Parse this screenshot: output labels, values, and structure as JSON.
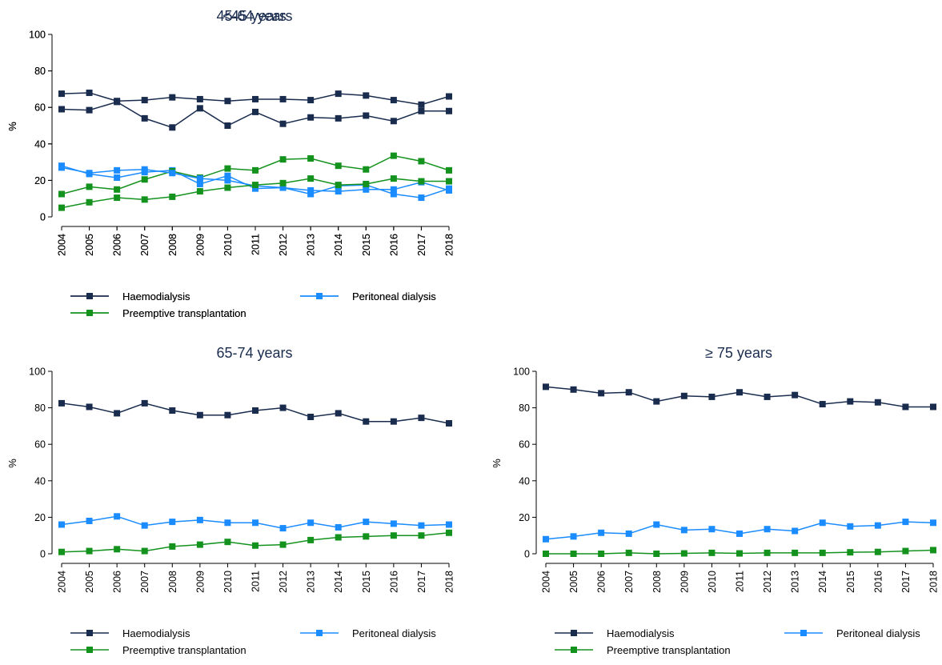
{
  "colors": {
    "Haemodialysis": "#1a2c4e",
    "Peritoneal dialysis": "#1a8cff",
    "Preemptive transplantation": "#14921e"
  },
  "chart_data": [
    {
      "type": "line",
      "title": "<45 years",
      "ylabel": "%",
      "ylim": [
        0,
        100
      ],
      "yticks": [
        0,
        20,
        40,
        60,
        80,
        100
      ],
      "x": [
        "2004",
        "2005",
        "2006",
        "2007",
        "2008",
        "2009",
        "2010",
        "2011",
        "2012",
        "2013",
        "2014",
        "2015",
        "2016",
        "2017",
        "2018"
      ],
      "grid": false,
      "legend_position": "bottom",
      "series": [
        {
          "name": "Haemodialysis",
          "marker": "square",
          "values": [
            59,
            58.5,
            63,
            54,
            49,
            59.5,
            50,
            57.5,
            51,
            54.5,
            54,
            55.5,
            52.5,
            58,
            58
          ]
        },
        {
          "name": "Peritoneal dialysis",
          "marker": "square",
          "values": [
            28,
            23.5,
            21.5,
            24.5,
            25.5,
            18,
            22.5,
            15.5,
            16,
            12.5,
            17,
            17.5,
            12.5,
            10.5,
            15.5
          ]
        },
        {
          "name": "Preemptive transplantation",
          "marker": "square",
          "values": [
            12.5,
            16.5,
            15,
            20.5,
            25,
            21.5,
            26.5,
            25.5,
            31.5,
            32,
            28,
            26,
            33.5,
            30.5,
            25.5
          ]
        }
      ]
    },
    {
      "type": "line",
      "title": "45-64 years",
      "ylabel": "%",
      "ylim": [
        0,
        100
      ],
      "yticks": [
        0,
        20,
        40,
        60,
        80,
        100
      ],
      "x": [
        "2004",
        "2005",
        "2006",
        "2007",
        "2008",
        "2009",
        "2010",
        "2011",
        "2012",
        "2013",
        "2014",
        "2015",
        "2016",
        "2017",
        "2018"
      ],
      "grid": false,
      "legend_position": "bottom",
      "series": [
        {
          "name": "Haemodialysis",
          "marker": "square",
          "values": [
            67.5,
            68,
            63.5,
            64,
            65.5,
            64.5,
            63.5,
            64.5,
            64.5,
            64,
            67.5,
            66.5,
            64,
            61.5,
            66
          ]
        },
        {
          "name": "Peritoneal dialysis",
          "marker": "square",
          "values": [
            27,
            24,
            25.5,
            26,
            24,
            21,
            20,
            17,
            16,
            14.5,
            14,
            15,
            15,
            19,
            14.5
          ]
        },
        {
          "name": "Preemptive transplantation",
          "marker": "square",
          "values": [
            5,
            8,
            10.5,
            9.5,
            11,
            14,
            16,
            17.5,
            18.5,
            21,
            17.5,
            18,
            21,
            19.5,
            19.5
          ]
        }
      ]
    },
    {
      "type": "line",
      "title": "65-74 years",
      "ylabel": "%",
      "ylim": [
        0,
        100
      ],
      "yticks": [
        0,
        20,
        40,
        60,
        80,
        100
      ],
      "x": [
        "2004",
        "2005",
        "2006",
        "2007",
        "2008",
        "2009",
        "2010",
        "2011",
        "2012",
        "2013",
        "2014",
        "2015",
        "2016",
        "2017",
        "2018"
      ],
      "grid": false,
      "legend_position": "bottom",
      "series": [
        {
          "name": "Haemodialysis",
          "marker": "square",
          "values": [
            82.5,
            80.5,
            77,
            82.5,
            78.5,
            76,
            76,
            78.5,
            80,
            75,
            77,
            72.5,
            72.5,
            74.5,
            71.5
          ]
        },
        {
          "name": "Peritoneal dialysis",
          "marker": "square",
          "values": [
            16,
            18,
            20.5,
            15.5,
            17.5,
            18.5,
            17,
            17,
            14,
            17,
            14.5,
            17.5,
            16.5,
            15.5,
            16
          ]
        },
        {
          "name": "Preemptive transplantation",
          "marker": "square",
          "values": [
            1,
            1.5,
            2.5,
            1.5,
            4,
            5,
            6.5,
            4.5,
            5,
            7.5,
            9,
            9.5,
            10,
            10,
            11.5
          ]
        }
      ]
    },
    {
      "type": "line",
      "title": "≥ 75 years",
      "ylabel": "%",
      "ylim": [
        0,
        100
      ],
      "yticks": [
        0,
        20,
        40,
        60,
        80,
        100
      ],
      "x": [
        "2004",
        "2005",
        "2006",
        "2007",
        "2008",
        "2009",
        "2010",
        "2011",
        "2012",
        "2013",
        "2014",
        "2015",
        "2016",
        "2017",
        "2018"
      ],
      "grid": false,
      "legend_position": "bottom",
      "series": [
        {
          "name": "Haemodialysis",
          "marker": "square",
          "values": [
            91.5,
            90,
            88,
            88.5,
            83.5,
            86.5,
            86,
            88.5,
            86,
            87,
            82,
            83.5,
            83,
            80.5,
            80.5
          ]
        },
        {
          "name": "Peritoneal dialysis",
          "marker": "square",
          "values": [
            8,
            9.5,
            11.5,
            11,
            16,
            13,
            13.5,
            11,
            13.5,
            12.5,
            17,
            15,
            15.5,
            17.5,
            17
          ]
        },
        {
          "name": "Preemptive transplantation",
          "marker": "square",
          "values": [
            0,
            0,
            0,
            0.5,
            0,
            0.2,
            0.5,
            0.2,
            0.5,
            0.5,
            0.5,
            0.8,
            1,
            1.5,
            2
          ]
        }
      ]
    }
  ]
}
